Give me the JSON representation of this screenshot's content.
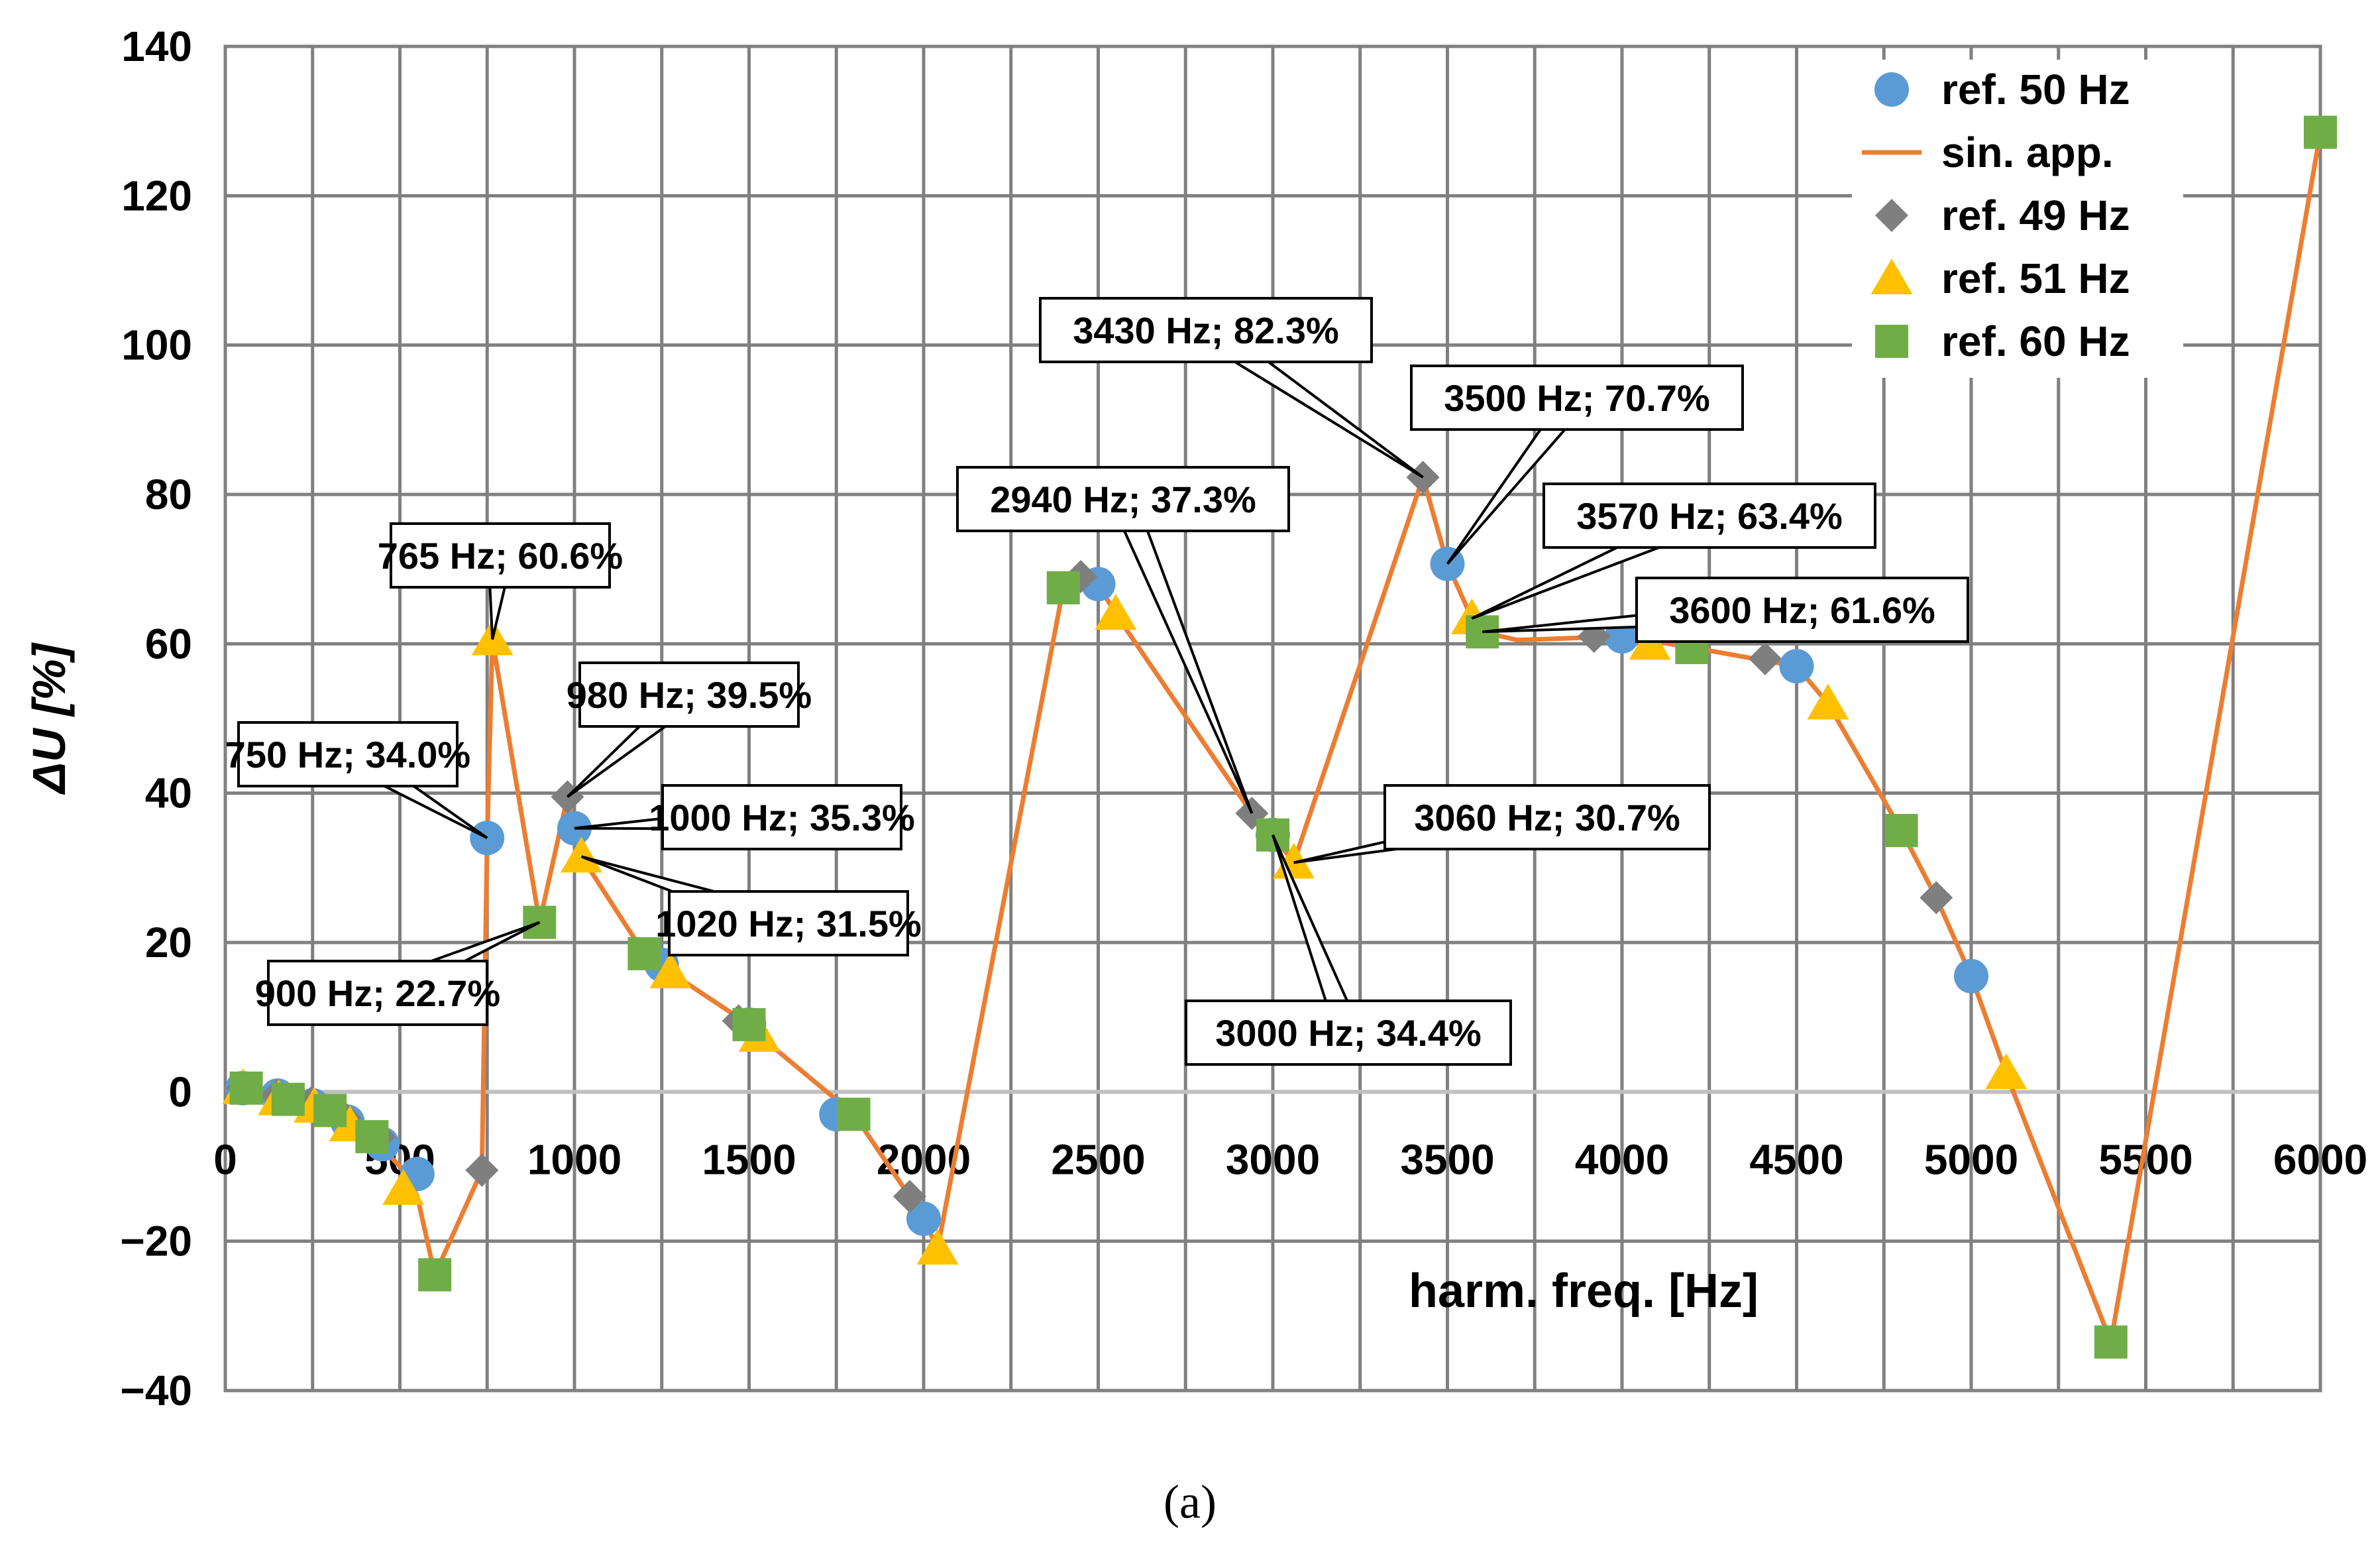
{
  "colors": {
    "ref50": "#5b9bd5",
    "sin": "#ed7d31",
    "ref49": "#7f7f7f",
    "ref51": "#ffc000",
    "ref60": "#70ad47",
    "grid": "#808080",
    "axis": "#808080",
    "zero": "#c0c0c0"
  },
  "chart_data": {
    "type": "scatter",
    "xlabel": "harm. freq. [Hz]",
    "ylabel": "ΔU [%]",
    "xlim": [
      0,
      6000
    ],
    "ylim": [
      -40,
      140
    ],
    "xticks": [
      0,
      500,
      1000,
      1500,
      2000,
      2500,
      3000,
      3500,
      4000,
      4500,
      5000,
      5500,
      6000
    ],
    "yticks": [
      -40,
      -20,
      0,
      20,
      40,
      60,
      80,
      100,
      120,
      140
    ],
    "ytick_labels": [
      "−40",
      "−20",
      "0",
      "20",
      "40",
      "60",
      "80",
      "100",
      "120",
      "140"
    ],
    "caption": "(a)",
    "legend": [
      "ref. 50 Hz",
      "sin. app.",
      "ref. 49 Hz",
      "ref. 51 Hz",
      "ref. 60 Hz"
    ],
    "series": [
      {
        "name": "ref. 50 Hz",
        "marker": "circle",
        "color_key": "ref50",
        "points": [
          [
            50,
            0.5
          ],
          [
            150,
            -0.5
          ],
          [
            250,
            -1.8
          ],
          [
            350,
            -4
          ],
          [
            450,
            -7
          ],
          [
            550,
            -11
          ],
          [
            750,
            34.0
          ],
          [
            1000,
            35.3
          ],
          [
            1250,
            17
          ],
          [
            1500,
            9
          ],
          [
            1750,
            -3
          ],
          [
            2000,
            -17
          ],
          [
            2500,
            68
          ],
          [
            3000,
            34.4
          ],
          [
            3500,
            70.7
          ],
          [
            4000,
            61
          ],
          [
            4500,
            57
          ],
          [
            5000,
            15.5
          ]
        ]
      },
      {
        "name": "ref. 49 Hz",
        "marker": "diamond",
        "color_key": "ref49",
        "points": [
          [
            49,
            0.5
          ],
          [
            147,
            -0.5
          ],
          [
            245,
            -1.5
          ],
          [
            343,
            -3.5
          ],
          [
            441,
            -6
          ],
          [
            735,
            -10.5
          ],
          [
            980,
            39.5
          ],
          [
            1470,
            9.5
          ],
          [
            1960,
            -14
          ],
          [
            2450,
            69
          ],
          [
            2940,
            37.3
          ],
          [
            3430,
            82.3
          ],
          [
            3920,
            61
          ],
          [
            4410,
            58
          ],
          [
            4900,
            26
          ]
        ]
      },
      {
        "name": "ref. 51 Hz",
        "marker": "triangle",
        "color_key": "ref51",
        "points": [
          [
            51,
            0.5
          ],
          [
            153,
            -1
          ],
          [
            255,
            -2
          ],
          [
            357,
            -4.5
          ],
          [
            510,
            -13
          ],
          [
            765,
            60.6
          ],
          [
            1020,
            31.5
          ],
          [
            1275,
            16
          ],
          [
            1530,
            7.5
          ],
          [
            2040,
            -21
          ],
          [
            2550,
            64
          ],
          [
            3060,
            30.7
          ],
          [
            3570,
            63.4
          ],
          [
            4080,
            60
          ],
          [
            4590,
            52
          ],
          [
            5100,
            2.5
          ]
        ]
      },
      {
        "name": "ref. 60 Hz",
        "marker": "square",
        "color_key": "ref60",
        "points": [
          [
            60,
            0.5
          ],
          [
            180,
            -1
          ],
          [
            300,
            -2.5
          ],
          [
            420,
            -6
          ],
          [
            600,
            -24.5
          ],
          [
            900,
            22.7
          ],
          [
            1200,
            18.5
          ],
          [
            1500,
            9
          ],
          [
            1800,
            -3
          ],
          [
            2400,
            67.5
          ],
          [
            3000,
            34.4
          ],
          [
            3600,
            61.6
          ],
          [
            4200,
            59.5
          ],
          [
            4800,
            35
          ],
          [
            5400,
            -33.5
          ],
          [
            6000,
            128.5
          ]
        ]
      }
    ],
    "sin_app": [
      [
        0,
        0.5
      ],
      [
        100,
        0
      ],
      [
        200,
        -1
      ],
      [
        300,
        -2.5
      ],
      [
        400,
        -5
      ],
      [
        500,
        -10
      ],
      [
        550,
        -14
      ],
      [
        600,
        -24.5
      ],
      [
        735,
        -10.5
      ],
      [
        750,
        34.0
      ],
      [
        765,
        60.6
      ],
      [
        900,
        22.7
      ],
      [
        980,
        39.5
      ],
      [
        1000,
        35.3
      ],
      [
        1020,
        31.5
      ],
      [
        1200,
        18.5
      ],
      [
        1275,
        16
      ],
      [
        1500,
        9
      ],
      [
        1530,
        7.5
      ],
      [
        1800,
        -3
      ],
      [
        1960,
        -14
      ],
      [
        2000,
        -17
      ],
      [
        2040,
        -21
      ],
      [
        2400,
        67.5
      ],
      [
        2450,
        69
      ],
      [
        2500,
        68
      ],
      [
        2550,
        64
      ],
      [
        2940,
        37.3
      ],
      [
        3000,
        34.4
      ],
      [
        3060,
        30.7
      ],
      [
        3430,
        82.3
      ],
      [
        3500,
        70.7
      ],
      [
        3570,
        63.4
      ],
      [
        3600,
        61.6
      ],
      [
        3700,
        60.5
      ],
      [
        4000,
        61
      ],
      [
        4200,
        59.5
      ],
      [
        4500,
        57
      ],
      [
        4590,
        52
      ],
      [
        4800,
        35
      ],
      [
        4900,
        26
      ],
      [
        5000,
        15.5
      ],
      [
        5100,
        2.5
      ],
      [
        5400,
        -33.5
      ],
      [
        6000,
        128.5
      ]
    ],
    "annotations": [
      {
        "text": "750 Hz; 34.0%",
        "x": 750,
        "y": 34.0
      },
      {
        "text": "765 Hz; 60.6%",
        "x": 765,
        "y": 60.6
      },
      {
        "text": "900 Hz; 22.7%",
        "x": 900,
        "y": 22.7
      },
      {
        "text": "980 Hz; 39.5%",
        "x": 980,
        "y": 39.5
      },
      {
        "text": "1000 Hz; 35.3%",
        "x": 1000,
        "y": 35.3
      },
      {
        "text": "1020 Hz; 31.5%",
        "x": 1020,
        "y": 31.5
      },
      {
        "text": "2940 Hz; 37.3%",
        "x": 2940,
        "y": 37.3
      },
      {
        "text": "3000 Hz; 34.4%",
        "x": 3000,
        "y": 34.4
      },
      {
        "text": "3060 Hz; 30.7%",
        "x": 3060,
        "y": 30.7
      },
      {
        "text": "3430 Hz; 82.3%",
        "x": 3430,
        "y": 82.3
      },
      {
        "text": "3500 Hz; 70.7%",
        "x": 3500,
        "y": 70.7
      },
      {
        "text": "3570 Hz; 63.4%",
        "x": 3570,
        "y": 63.4
      },
      {
        "text": "3600 Hz; 61.6%",
        "x": 3600,
        "y": 61.6
      }
    ]
  }
}
